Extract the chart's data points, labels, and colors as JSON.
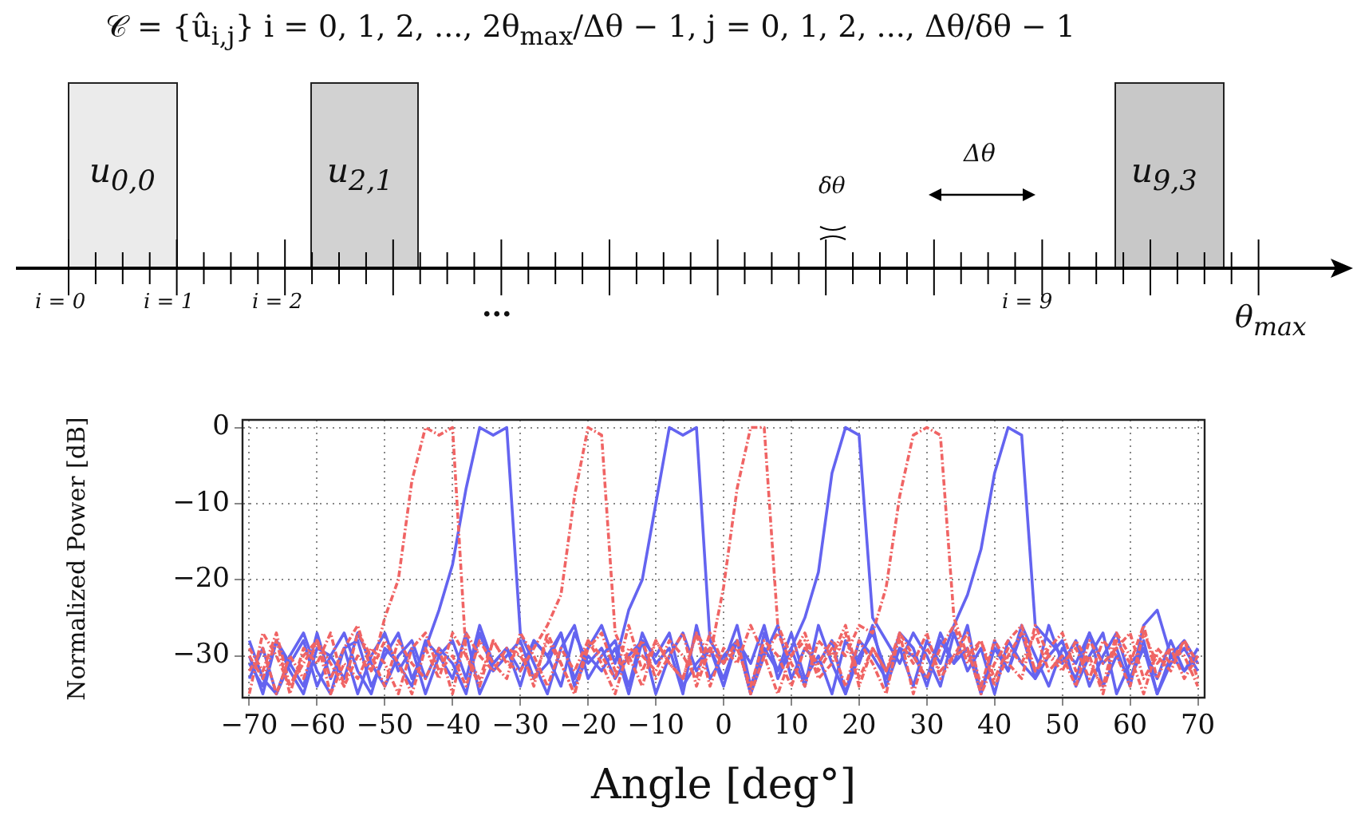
{
  "chart_data": {
    "type": "line",
    "xlabel": "Angle [deg°]",
    "ylabel": "Normalized Power [dB]",
    "annotations": [
      "𝒞 = {û$_{i,j}$}    i = 0, 1, 2, ..., 2θ$_{max}$/Δθ − 1,  j = 0, 1, 2, ..., Δθ/δθ − 1",
      "u$_{0,0}$",
      "u$_{2,1}$",
      "u$_{9,3}$",
      "δθ",
      "Δθ",
      "i = 0",
      "i = 1",
      "i = 2",
      "...",
      "i = 9",
      "θ$_{max}$"
    ],
    "x": [
      -70,
      -68,
      -66,
      -64,
      -62,
      -60,
      -58,
      -56,
      -54,
      -52,
      -50,
      -48,
      -46,
      -44,
      -42,
      -40,
      -38,
      -36,
      -34,
      -32,
      -30,
      -28,
      -26,
      -24,
      -22,
      -20,
      -18,
      -16,
      -14,
      -12,
      -10,
      -8,
      -6,
      -4,
      -2,
      0,
      2,
      4,
      6,
      8,
      10,
      12,
      14,
      16,
      18,
      20,
      22,
      24,
      26,
      28,
      30,
      32,
      34,
      36,
      38,
      40,
      42,
      44,
      46,
      48,
      50,
      52,
      54,
      56,
      58,
      60,
      62,
      64,
      66,
      68,
      70
    ],
    "series": [
      {
        "color": "#6464f0",
        "line_style": "solid",
        "values": [
          -28,
          -33,
          -35,
          -30,
          -27,
          -32,
          -35,
          -29,
          -28,
          -34,
          -30,
          -27,
          -33,
          -29,
          -24,
          -18,
          -8,
          0,
          -1,
          0,
          -27,
          -31,
          -35,
          -29,
          -26,
          -33,
          -30,
          -28,
          -34,
          -27,
          -31,
          -29,
          -35,
          -26,
          -33,
          -30,
          -28,
          -35,
          -27,
          -32,
          -29,
          -34,
          -26,
          -31,
          -35,
          -28,
          -30,
          -33,
          -27,
          -29,
          -34,
          -28,
          -31,
          -26,
          -35,
          -29,
          -32,
          -27,
          -33,
          -30,
          -28,
          -34,
          -30,
          -27,
          -35,
          -31,
          -29,
          -33,
          -28,
          -32,
          -30
        ]
      },
      {
        "color": "#6464f0",
        "line_style": "solid",
        "values": [
          -30,
          -35,
          -28,
          -31,
          -34,
          -27,
          -33,
          -29,
          -35,
          -30,
          -27,
          -32,
          -29,
          -35,
          -30,
          -28,
          -33,
          -26,
          -31,
          -29,
          -34,
          -28,
          -30,
          -27,
          -33,
          -29,
          -26,
          -31,
          -24,
          -20,
          -10,
          0,
          -1,
          0,
          -28,
          -31,
          -26,
          -34,
          -29,
          -32,
          -27,
          -33,
          -30,
          -35,
          -28,
          -31,
          -26,
          -34,
          -29,
          -30,
          -33,
          -27,
          -31,
          -29,
          -35,
          -28,
          -32,
          -26,
          -30,
          -34,
          -29,
          -31,
          -27,
          -34,
          -30,
          -33,
          -28,
          -35,
          -31,
          -29,
          -32
        ]
      },
      {
        "color": "#6464f0",
        "line_style": "solid",
        "values": [
          -33,
          -29,
          -35,
          -31,
          -28,
          -34,
          -30,
          -27,
          -32,
          -35,
          -29,
          -31,
          -34,
          -28,
          -30,
          -33,
          -27,
          -35,
          -31,
          -29,
          -32,
          -28,
          -30,
          -34,
          -27,
          -31,
          -29,
          -33,
          -30,
          -28,
          -35,
          -30,
          -27,
          -32,
          -29,
          -34,
          -28,
          -31,
          -26,
          -33,
          -29,
          -25,
          -19,
          -6,
          0,
          -1,
          -25,
          -28,
          -31,
          -27,
          -30,
          -34,
          -27,
          -32,
          -29,
          -35,
          -28,
          -31,
          -33,
          -26,
          -31,
          -28,
          -34,
          -30,
          -27,
          -33,
          -29,
          -35,
          -30,
          -32,
          -29
        ]
      },
      {
        "color": "#6464f0",
        "line_style": "solid",
        "values": [
          -31,
          -34,
          -28,
          -32,
          -35,
          -29,
          -30,
          -33,
          -27,
          -31,
          -34,
          -30,
          -28,
          -33,
          -29,
          -31,
          -35,
          -27,
          -32,
          -30,
          -28,
          -33,
          -31,
          -27,
          -34,
          -30,
          -32,
          -29,
          -35,
          -28,
          -30,
          -27,
          -34,
          -31,
          -29,
          -33,
          -28,
          -35,
          -30,
          -26,
          -33,
          -29,
          -31,
          -28,
          -35,
          -30,
          -27,
          -32,
          -29,
          -34,
          -28,
          -31,
          -26,
          -22,
          -16,
          -6,
          0,
          -1,
          -26,
          -28,
          -30,
          -33,
          -27,
          -31,
          -29,
          -34,
          -26,
          -24,
          -30,
          -28,
          -31
        ]
      },
      {
        "color": "#f06464",
        "line_style": "dashed",
        "values": [
          -35,
          -27,
          -30,
          -34,
          -31,
          -28,
          -33,
          -29,
          -26,
          -32,
          -25,
          -20,
          -7,
          0,
          -1,
          0,
          -30,
          -33,
          -28,
          -31,
          -29,
          -34,
          -27,
          -31,
          -35,
          -28,
          -30,
          -33,
          -26,
          -32,
          -28,
          -31,
          -33,
          -27,
          -34,
          -29,
          -31,
          -26,
          -30,
          -35,
          -30,
          -27,
          -32,
          -29,
          -34,
          -28,
          -31,
          -35,
          -27,
          -30,
          -33,
          -29,
          -26,
          -31,
          -28,
          -34,
          -30,
          -27,
          -32,
          -29,
          -27,
          -32,
          -30,
          -35,
          -28,
          -31,
          -26,
          -33,
          -29,
          -30,
          -34
        ]
      },
      {
        "color": "#f06464",
        "line_style": "dashed",
        "values": [
          -30,
          -33,
          -28,
          -35,
          -29,
          -31,
          -27,
          -34,
          -30,
          -32,
          -28,
          -31,
          -35,
          -29,
          -33,
          -27,
          -30,
          -34,
          -28,
          -31,
          -32,
          -29,
          -26,
          -22,
          -9,
          0,
          -1,
          -27,
          -31,
          -28,
          -33,
          -30,
          -27,
          -34,
          -29,
          -31,
          -28,
          -35,
          -30,
          -27,
          -31,
          -34,
          -28,
          -30,
          -26,
          -33,
          -29,
          -32,
          -27,
          -35,
          -29,
          -32,
          -30,
          -27,
          -34,
          -28,
          -31,
          -33,
          -26,
          -30,
          -32,
          -28,
          -31,
          -34,
          -27,
          -30,
          -35,
          -29,
          -31,
          -28,
          -33
        ]
      },
      {
        "color": "#f06464",
        "line_style": "dashed",
        "values": [
          -32,
          -29,
          -35,
          -30,
          -33,
          -28,
          -31,
          -34,
          -27,
          -30,
          -34,
          -28,
          -31,
          -33,
          -29,
          -35,
          -27,
          -30,
          -32,
          -29,
          -30,
          -33,
          -28,
          -31,
          -35,
          -29,
          -27,
          -32,
          -30,
          -34,
          -28,
          -31,
          -33,
          -27,
          -30,
          -21,
          -8,
          0,
          0,
          -26,
          -30,
          -28,
          -33,
          -31,
          -27,
          -34,
          -29,
          -32,
          -28,
          -31,
          -27,
          -33,
          -30,
          -29,
          -35,
          -31,
          -28,
          -26,
          -32,
          -30,
          -31,
          -29,
          -33,
          -28,
          -30,
          -34,
          -27,
          -31,
          -29,
          -33,
          -30
        ]
      },
      {
        "color": "#f06464",
        "line_style": "dashed",
        "values": [
          -29,
          -32,
          -27,
          -34,
          -30,
          -28,
          -35,
          -31,
          -33,
          -29,
          -31,
          -35,
          -29,
          -27,
          -32,
          -30,
          -34,
          -28,
          -31,
          -33,
          -27,
          -30,
          -34,
          -29,
          -32,
          -28,
          -31,
          -35,
          -29,
          -30,
          -32,
          -28,
          -30,
          -33,
          -27,
          -31,
          -29,
          -34,
          -28,
          -30,
          -34,
          -29,
          -31,
          -28,
          -30,
          -26,
          -27,
          -21,
          -9,
          -1,
          0,
          -1,
          -25,
          -30,
          -28,
          -33,
          -29,
          -31,
          -27,
          -32,
          -30,
          -34,
          -28,
          -31,
          -29,
          -27,
          -33,
          -30,
          -32,
          -28,
          -31
        ]
      }
    ],
    "xlim": [
      -71,
      71
    ],
    "xticks": [
      {
        "value": -70,
        "label": "−70"
      },
      {
        "value": -60,
        "label": "−60"
      },
      {
        "value": -50,
        "label": "−50"
      },
      {
        "value": -40,
        "label": "−40"
      },
      {
        "value": -30,
        "label": "−30"
      },
      {
        "value": -20,
        "label": "−20"
      },
      {
        "value": -10,
        "label": "−10"
      },
      0,
      10,
      20,
      30,
      40,
      50,
      60,
      70
    ],
    "ylim": [
      -35.5,
      1
    ],
    "yticks": [
      0,
      {
        "value": -10,
        "label": "−10"
      },
      {
        "value": -20,
        "label": "−20"
      },
      {
        "value": -30,
        "label": "−30"
      }
    ],
    "grid": true,
    "marker": "none",
    "legend": false
  }
}
